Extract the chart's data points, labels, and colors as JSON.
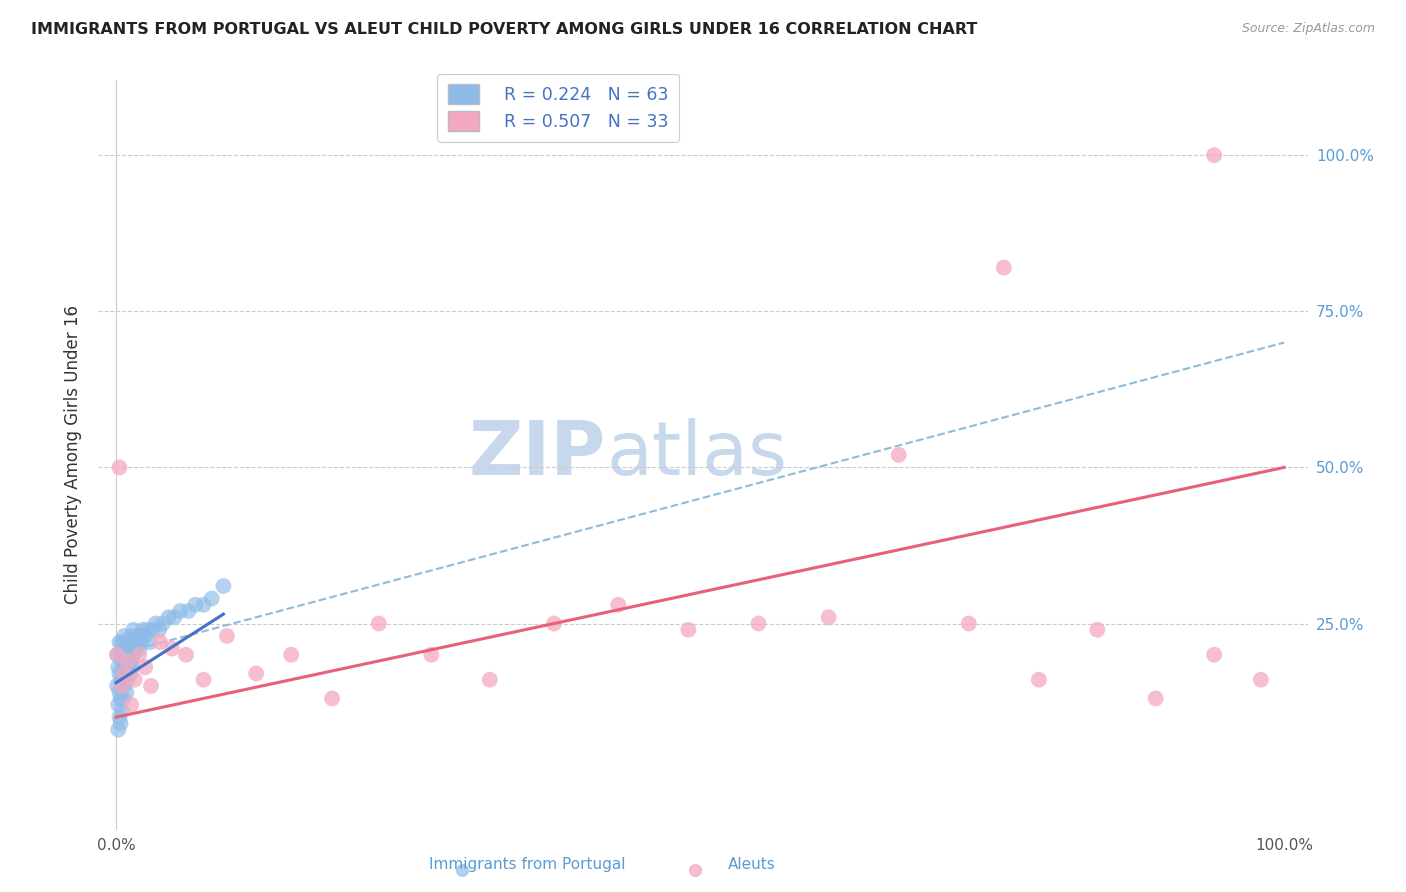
{
  "title": "IMMIGRANTS FROM PORTUGAL VS ALEUT CHILD POVERTY AMONG GIRLS UNDER 16 CORRELATION CHART",
  "source": "Source: ZipAtlas.com",
  "ylabel": "Child Poverty Among Girls Under 16",
  "watermark_part1": "ZIP",
  "watermark_part2": "atlas",
  "legend_r1": "R = 0.224",
  "legend_n1": "N = 63",
  "legend_r2": "R = 0.507",
  "legend_n2": "N = 33",
  "color_blue": "#8DBBE8",
  "color_pink": "#F4A8BF",
  "line_blue": "#4472C4",
  "line_pink": "#E8607A",
  "line_dash_color": "#8FBBDA",
  "blue_x": [
    0.001,
    0.001,
    0.002,
    0.002,
    0.002,
    0.003,
    0.003,
    0.003,
    0.003,
    0.004,
    0.004,
    0.004,
    0.004,
    0.005,
    0.005,
    0.005,
    0.005,
    0.006,
    0.006,
    0.006,
    0.007,
    0.007,
    0.007,
    0.008,
    0.008,
    0.009,
    0.009,
    0.009,
    0.01,
    0.01,
    0.011,
    0.011,
    0.012,
    0.012,
    0.013,
    0.013,
    0.014,
    0.014,
    0.015,
    0.015,
    0.016,
    0.017,
    0.018,
    0.019,
    0.02,
    0.021,
    0.022,
    0.023,
    0.025,
    0.027,
    0.029,
    0.031,
    0.034,
    0.037,
    0.04,
    0.045,
    0.05,
    0.055,
    0.062,
    0.068,
    0.075,
    0.082,
    0.092
  ],
  "blue_y": [
    0.2,
    0.15,
    0.18,
    0.12,
    0.08,
    0.22,
    0.17,
    0.14,
    0.1,
    0.2,
    0.16,
    0.13,
    0.09,
    0.22,
    0.19,
    0.15,
    0.11,
    0.2,
    0.17,
    0.13,
    0.23,
    0.19,
    0.15,
    0.21,
    0.17,
    0.22,
    0.18,
    0.14,
    0.2,
    0.16,
    0.22,
    0.18,
    0.21,
    0.17,
    0.23,
    0.19,
    0.22,
    0.18,
    0.24,
    0.2,
    0.22,
    0.21,
    0.23,
    0.22,
    0.21,
    0.23,
    0.22,
    0.24,
    0.23,
    0.24,
    0.22,
    0.24,
    0.25,
    0.24,
    0.25,
    0.26,
    0.26,
    0.27,
    0.27,
    0.28,
    0.28,
    0.29,
    0.31
  ],
  "pink_x": [
    0.001,
    0.003,
    0.005,
    0.007,
    0.01,
    0.013,
    0.016,
    0.02,
    0.025,
    0.03,
    0.038,
    0.048,
    0.06,
    0.075,
    0.095,
    0.12,
    0.15,
    0.185,
    0.225,
    0.27,
    0.32,
    0.375,
    0.43,
    0.49,
    0.55,
    0.61,
    0.67,
    0.73,
    0.79,
    0.84,
    0.89,
    0.94,
    0.98
  ],
  "pink_y": [
    0.2,
    0.5,
    0.15,
    0.17,
    0.19,
    0.12,
    0.16,
    0.2,
    0.18,
    0.15,
    0.22,
    0.21,
    0.2,
    0.16,
    0.23,
    0.17,
    0.2,
    0.13,
    0.25,
    0.2,
    0.16,
    0.25,
    0.28,
    0.24,
    0.25,
    0.26,
    0.52,
    0.25,
    0.16,
    0.24,
    0.13,
    0.2,
    0.16
  ],
  "pink_outlier_x": [
    0.94
  ],
  "pink_outlier_y": [
    1.0
  ],
  "pink_high_x": [
    0.76
  ],
  "pink_high_y": [
    0.82
  ],
  "xlim": [
    0.0,
    1.0
  ],
  "ylim": [
    -0.08,
    1.12
  ],
  "pink_line_x0": 0.0,
  "pink_line_y0": 0.1,
  "pink_line_x1": 1.0,
  "pink_line_y1": 0.5,
  "blue_line_x0": 0.0,
  "blue_line_y0": 0.155,
  "blue_line_x1": 0.092,
  "blue_line_y1": 0.265,
  "dash_line_x0": 0.0,
  "dash_line_y0": 0.2,
  "dash_line_x1": 1.0,
  "dash_line_y1": 0.7
}
